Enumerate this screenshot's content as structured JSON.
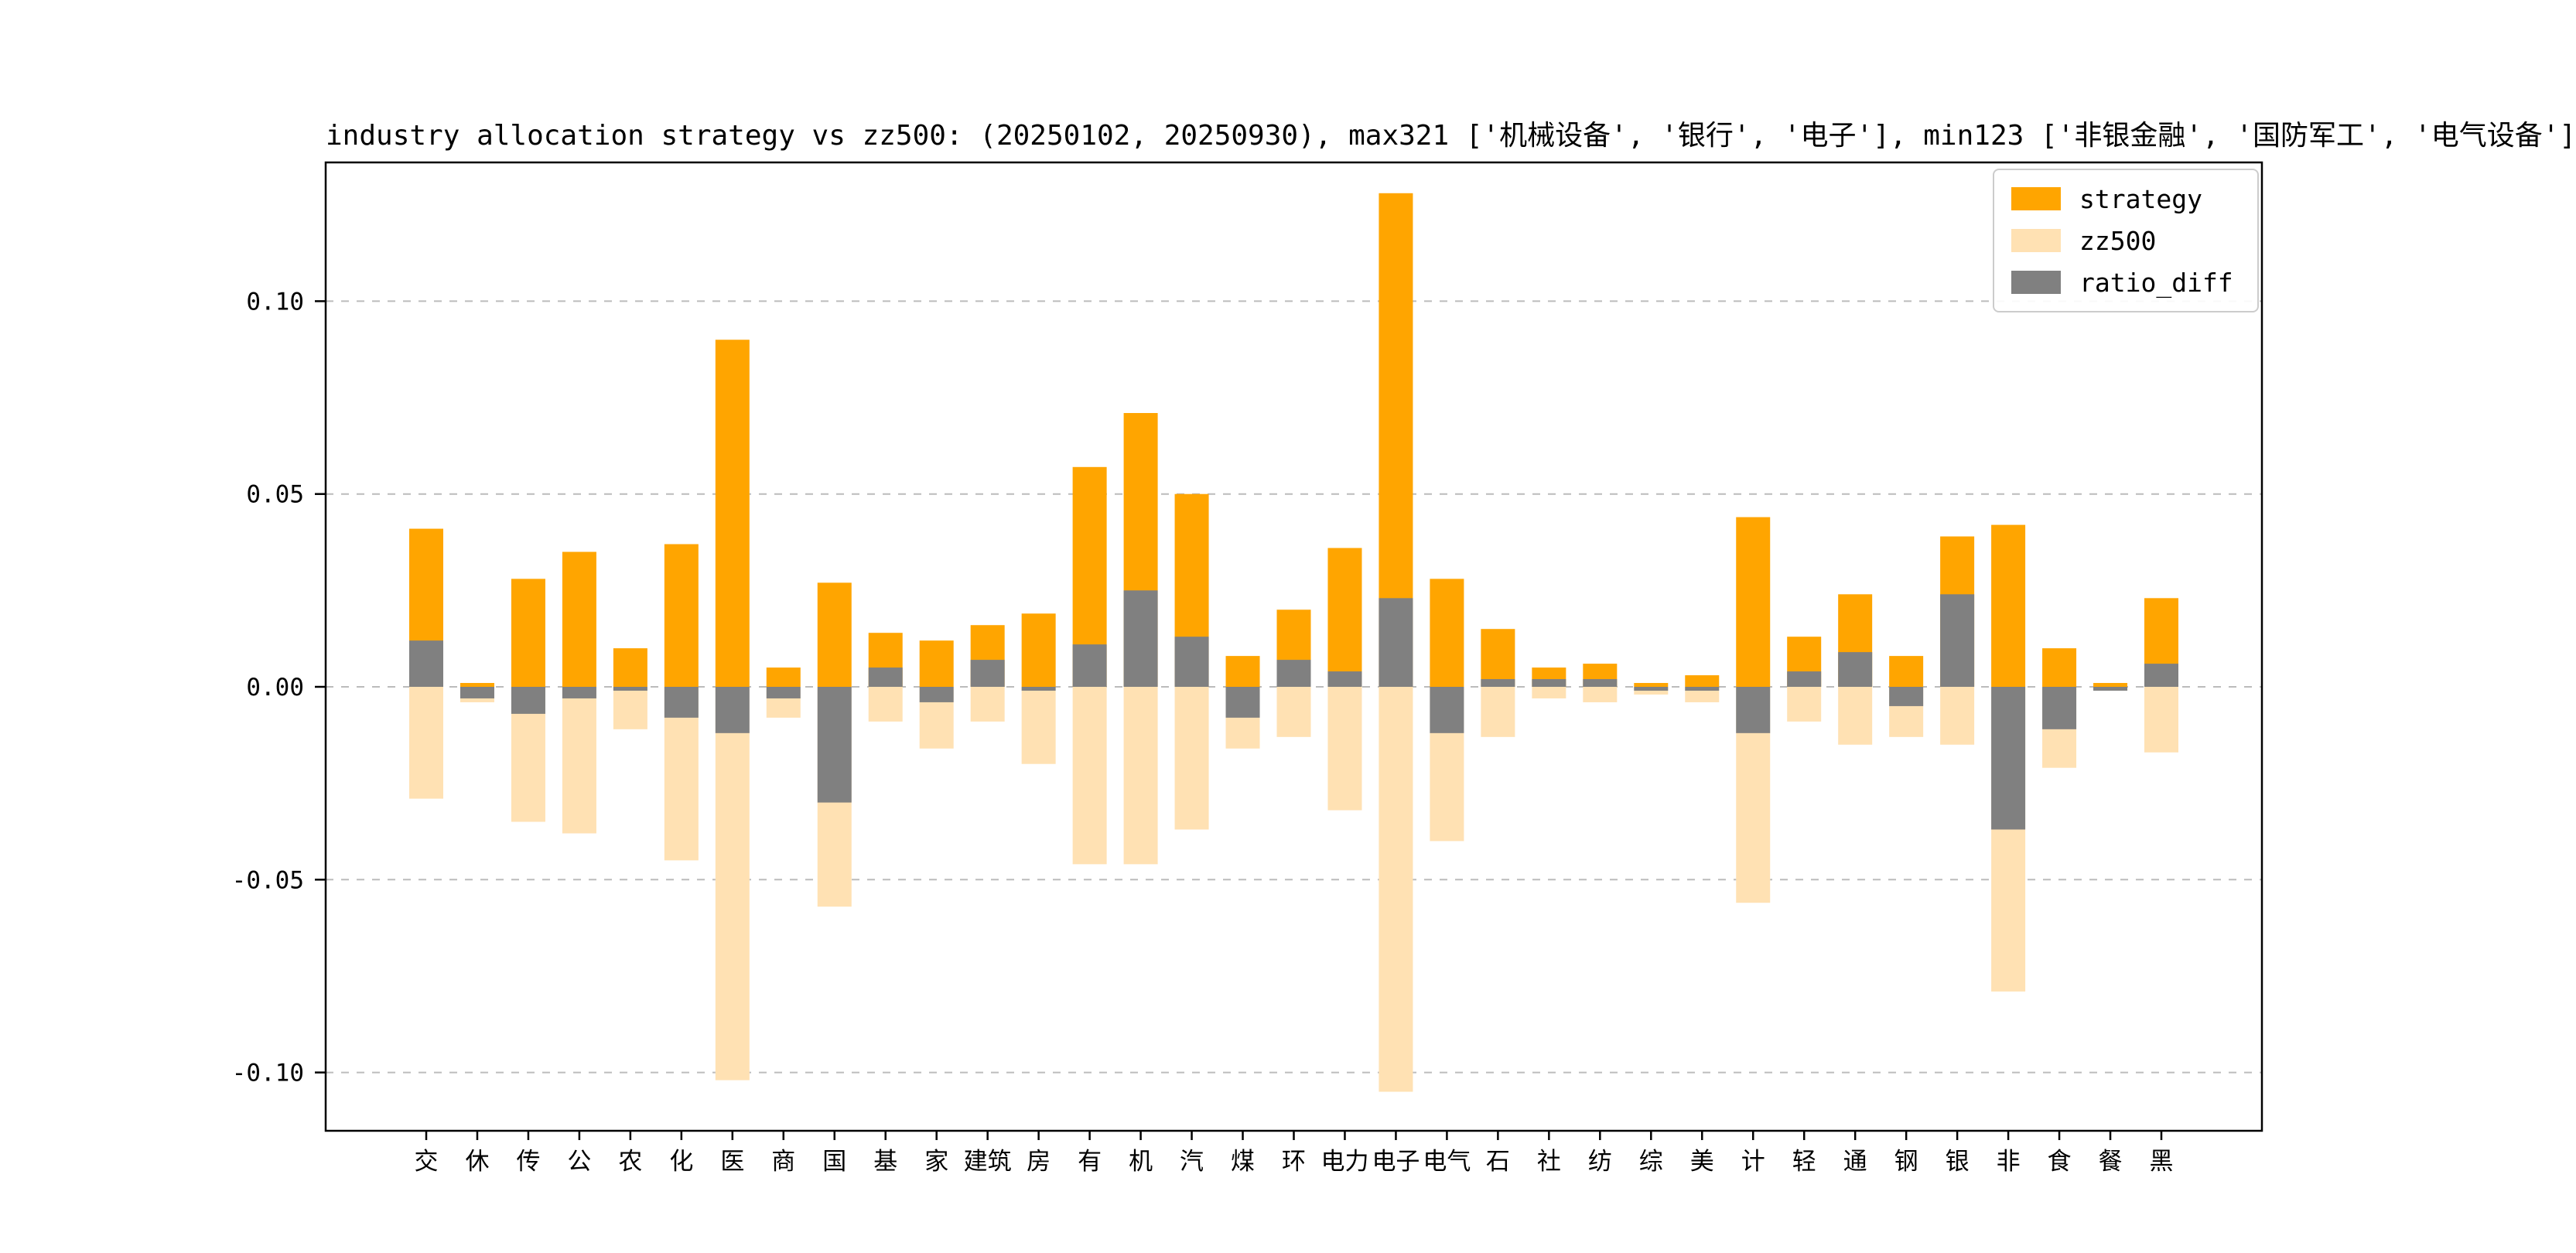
{
  "legend": {
    "items": [
      {
        "label": "strategy",
        "color": "#FFA500"
      },
      {
        "label": "zz500",
        "color": "#FFE1B3"
      },
      {
        "label": "ratio_diff",
        "color": "#808080"
      }
    ]
  },
  "chart_data": {
    "type": "bar",
    "title": "industry allocation strategy vs zz500: (20250102, 20250930), max321 ['机械设备', '银行', '电子'], min123 ['非银金融', '国防军工', '电气设备']",
    "categories": [
      "交",
      "休",
      "传",
      "公",
      "农",
      "化",
      "医",
      "商",
      "国",
      "基",
      "家",
      "建筑",
      "房",
      "有",
      "机",
      "汽",
      "煤",
      "环",
      "电力",
      "电子",
      "电气",
      "石",
      "社",
      "纺",
      "综",
      "美",
      "计",
      "轻",
      "通",
      "钢",
      "银",
      "非",
      "食",
      "餐",
      "黑"
    ],
    "series": [
      {
        "name": "strategy",
        "color": "#FFA500",
        "values": [
          0.041,
          0.001,
          0.028,
          0.035,
          0.01,
          0.037,
          0.09,
          0.005,
          0.027,
          0.014,
          0.012,
          0.016,
          0.019,
          0.057,
          0.071,
          0.05,
          0.008,
          0.02,
          0.036,
          0.128,
          0.028,
          0.015,
          0.005,
          0.006,
          0.001,
          0.003,
          0.044,
          0.013,
          0.024,
          0.008,
          0.039,
          0.042,
          0.01,
          0.001,
          0.023
        ]
      },
      {
        "name": "zz500",
        "color": "#FFE1B3",
        "values": [
          -0.029,
          -0.004,
          -0.035,
          -0.038,
          -0.011,
          -0.045,
          -0.102,
          -0.008,
          -0.057,
          -0.009,
          -0.016,
          -0.009,
          -0.02,
          -0.046,
          -0.046,
          -0.037,
          -0.016,
          -0.013,
          -0.032,
          -0.105,
          -0.04,
          -0.013,
          -0.003,
          -0.004,
          -0.002,
          -0.004,
          -0.056,
          -0.009,
          -0.015,
          -0.013,
          -0.015,
          -0.079,
          -0.021,
          -0.001,
          -0.017
        ]
      },
      {
        "name": "ratio_diff",
        "color": "#808080",
        "values": [
          0.012,
          -0.003,
          -0.007,
          -0.003,
          -0.001,
          -0.008,
          -0.012,
          -0.003,
          -0.03,
          0.005,
          -0.004,
          0.007,
          -0.001,
          0.011,
          0.025,
          0.013,
          -0.008,
          0.007,
          0.004,
          0.023,
          -0.012,
          0.002,
          0.002,
          0.002,
          -0.001,
          -0.001,
          -0.012,
          0.004,
          0.009,
          -0.005,
          0.024,
          -0.037,
          -0.011,
          -0.001,
          0.006
        ]
      }
    ],
    "ytick_labels": [
      "-0.10",
      "-0.05",
      "0.00",
      "0.05",
      "0.10"
    ],
    "ylim": [
      -0.115,
      0.136
    ],
    "xlabel": "",
    "ylabel": "",
    "grid": "horizontal-dashed",
    "legend_position": "upper right"
  }
}
